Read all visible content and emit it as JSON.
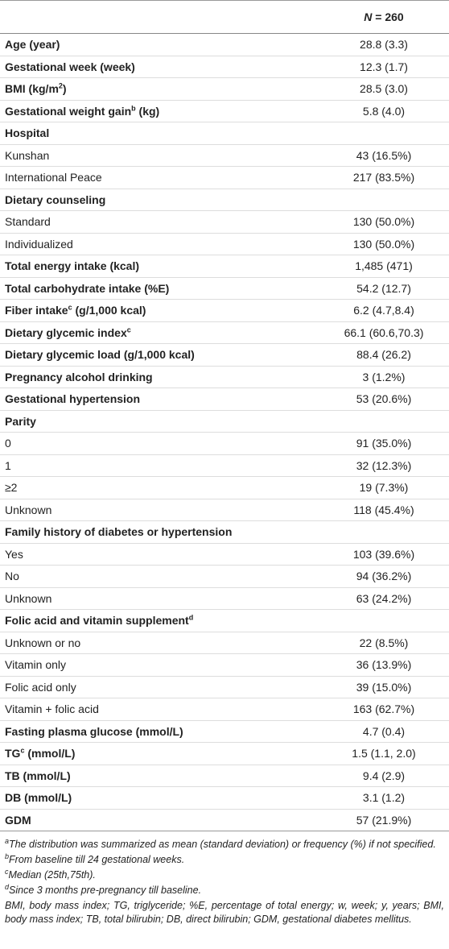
{
  "table": {
    "header": {
      "n_symbol": "N",
      "n_text": "= 260"
    },
    "rows": [
      {
        "label": "Age (year)",
        "value": "28.8 (3.3)",
        "bold": true
      },
      {
        "label": "Gestational week (week)",
        "value": "12.3 (1.7)",
        "bold": true
      },
      {
        "label": "BMI (kg/m",
        "sup": "2",
        "label_after": ")",
        "value": "28.5 (3.0)",
        "bold": true
      },
      {
        "label": "Gestational weight gain",
        "sup": "b",
        "label_after": " (kg)",
        "value": "5.8 (4.0)",
        "bold": true
      },
      {
        "label": "Hospital",
        "bold": true
      },
      {
        "label": "Kunshan",
        "value": "43 (16.5%)",
        "bold": false
      },
      {
        "label": "International Peace",
        "value": "217 (83.5%)",
        "bold": false
      },
      {
        "label": "Dietary counseling",
        "bold": true
      },
      {
        "label": "Standard",
        "value": "130 (50.0%)",
        "bold": false
      },
      {
        "label": "Individualized",
        "value": "130 (50.0%)",
        "bold": false
      },
      {
        "label": "Total energy intake (kcal)",
        "value": "1,485 (471)",
        "bold": true
      },
      {
        "label": "Total carbohydrate intake (%E)",
        "value": "54.2 (12.7)",
        "bold": true
      },
      {
        "label": "Fiber intake",
        "sup": "c",
        "label_after": " (g/1,000 kcal)",
        "value": "6.2 (4.7,8.4)",
        "bold": true
      },
      {
        "label": "Dietary glycemic index",
        "sup": "c",
        "value": "66.1 (60.6,70.3)",
        "bold": true
      },
      {
        "label": "Dietary glycemic load (g/1,000 kcal)",
        "value": "88.4 (26.2)",
        "bold": true
      },
      {
        "label": "Pregnancy alcohol drinking",
        "value": "3 (1.2%)",
        "bold": true
      },
      {
        "label": "Gestational hypertension",
        "value": "53 (20.6%)",
        "bold": true
      },
      {
        "label": "Parity",
        "bold": true
      },
      {
        "label": "0",
        "value": "91 (35.0%)",
        "bold": false
      },
      {
        "label": "1",
        "value": "32 (12.3%)",
        "bold": false
      },
      {
        "label": "≥2",
        "value": "19 (7.3%)",
        "bold": false
      },
      {
        "label": "Unknown",
        "value": "118 (45.4%)",
        "bold": false
      },
      {
        "label": "Family history of diabetes or hypertension",
        "bold": true
      },
      {
        "label": "Yes",
        "value": "103 (39.6%)",
        "bold": false
      },
      {
        "label": "No",
        "value": "94 (36.2%)",
        "bold": false
      },
      {
        "label": "Unknown",
        "value": "63 (24.2%)",
        "bold": false
      },
      {
        "label": "Folic acid and vitamin supplement",
        "sup": "d",
        "bold": true
      },
      {
        "label": "Unknown or no",
        "value": "22 (8.5%)",
        "bold": false
      },
      {
        "label": "Vitamin only",
        "value": "36 (13.9%)",
        "bold": false
      },
      {
        "label": "Folic acid only",
        "value": "39 (15.0%)",
        "bold": false
      },
      {
        "label": "Vitamin + folic acid",
        "value": "163 (62.7%)",
        "bold": false
      },
      {
        "label": "Fasting plasma glucose (mmol/L)",
        "value": "4.7 (0.4)",
        "bold": true
      },
      {
        "label": "TG",
        "sup": "c",
        "label_after": " (mmol/L)",
        "value": "1.5 (1.1, 2.0)",
        "bold": true
      },
      {
        "label": "TB (mmol/L)",
        "value": "9.4 (2.9)",
        "bold": true
      },
      {
        "label": "DB (mmol/L)",
        "value": "3.1 (1.2)",
        "bold": true
      },
      {
        "label": "GDM",
        "value": "57 (21.9%)",
        "bold": true
      }
    ],
    "footnotes": [
      {
        "mark": "a",
        "text": "The distribution was summarized as mean (standard deviation) or frequency (%) if not specified."
      },
      {
        "mark": "b",
        "text": "From baseline till 24 gestational weeks."
      },
      {
        "mark": "c",
        "text": "Median (25th,75th)."
      },
      {
        "mark": "d",
        "text": "Since 3 months pre-pregnancy till baseline."
      },
      {
        "text": "BMI, body mass index; TG, triglyceride; %E, percentage of total energy; w, week; y, years; BMI, body mass index; TB, total bilirubin; DB, direct bilirubin; GDM, gestational diabetes mellitus."
      }
    ]
  }
}
